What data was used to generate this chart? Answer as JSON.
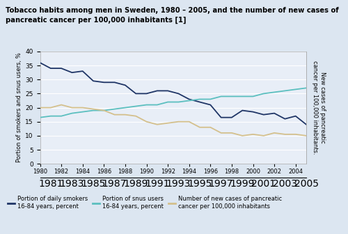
{
  "title_line1": "Tobacco habits among men in Sweden, 1980 – 2005, and the number of new cases of",
  "title_line2": "pancreatic cancer per 100,000 inhabitants [1]",
  "ylabel_left": "Portion of smokers and snus users, %",
  "ylabel_right": "New cases of pancreatic\ncancer per 100,000 inhabitants.",
  "years": [
    1980,
    1981,
    1982,
    1983,
    1984,
    1985,
    1986,
    1987,
    1988,
    1989,
    1990,
    1991,
    1992,
    1993,
    1994,
    1995,
    1996,
    1997,
    1998,
    1999,
    2000,
    2001,
    2002,
    2003,
    2004,
    2005
  ],
  "smokers": [
    36,
    34,
    34,
    32.5,
    33,
    29.5,
    29,
    29,
    28,
    25,
    25,
    26,
    26,
    25,
    23,
    22,
    21,
    16.5,
    16.5,
    19,
    18.5,
    17.5,
    18,
    16,
    17,
    14
  ],
  "snus": [
    16.5,
    17,
    17,
    18,
    18.5,
    19,
    19,
    19.5,
    20,
    20.5,
    21,
    21,
    22,
    22,
    22.5,
    23,
    23,
    24,
    24,
    24,
    24,
    25,
    25.5,
    26,
    26.5,
    27
  ],
  "cancer": [
    20,
    20,
    21,
    20,
    20,
    19.5,
    19,
    17.5,
    17.5,
    17,
    15,
    14,
    14.5,
    15,
    15,
    13,
    13,
    11,
    11,
    10,
    10.5,
    10,
    11,
    10.5,
    10.5,
    10
  ],
  "smoker_color": "#1f3566",
  "snus_color": "#5bbfbf",
  "cancer_color": "#d4c08c",
  "ylim": [
    0,
    40
  ],
  "yticks": [
    0,
    5,
    10,
    15,
    20,
    25,
    30,
    35,
    40
  ],
  "bg_color": "#dce6f1",
  "plot_bg_color": "#e8eef7",
  "grid_color": "#ffffff",
  "legend_labels": [
    "Portion of daily smokers\n16-84 years, percent",
    "Portion of snus users\n16-84 years, percent",
    "Number of new cases of pancreatic\ncancer per 100,000 inhabitants"
  ]
}
